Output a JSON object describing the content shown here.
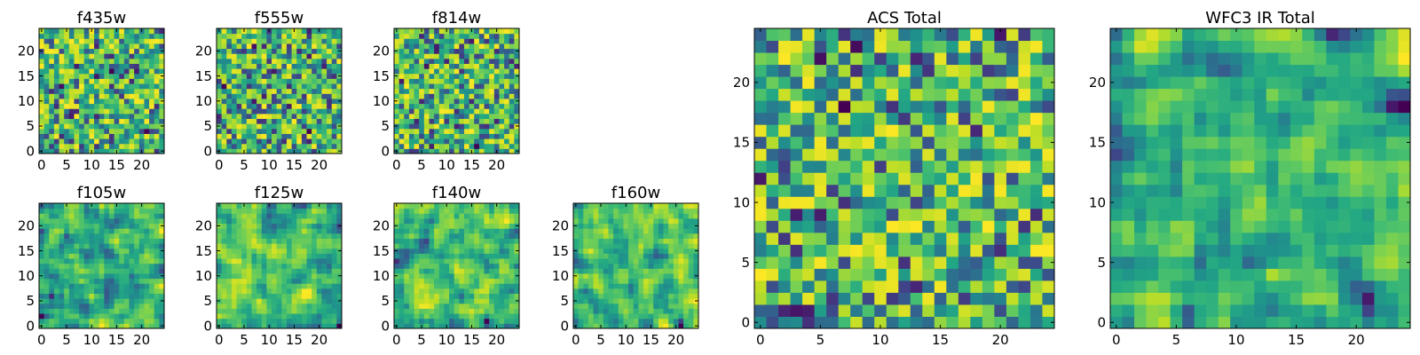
{
  "figure": {
    "colormap": "viridis"
  },
  "chart_data": [
    {
      "type": "heatmap",
      "title": "f435w",
      "seed": 11,
      "grid_size": 25,
      "extent": [
        -0.5,
        24.5
      ],
      "xticks": [
        0,
        5,
        10,
        15,
        20
      ],
      "yticks": [
        0,
        5,
        10,
        15,
        20
      ],
      "xlabel": "",
      "ylabel": "",
      "value_range": [
        0,
        1
      ],
      "texture": "noise"
    },
    {
      "type": "heatmap",
      "title": "f555w",
      "seed": 23,
      "grid_size": 25,
      "extent": [
        -0.5,
        24.5
      ],
      "xticks": [
        0,
        5,
        10,
        15,
        20
      ],
      "yticks": [
        0,
        5,
        10,
        15,
        20
      ],
      "xlabel": "",
      "ylabel": "",
      "value_range": [
        0,
        1
      ],
      "texture": "noise"
    },
    {
      "type": "heatmap",
      "title": "f814w",
      "seed": 37,
      "grid_size": 25,
      "extent": [
        -0.5,
        24.5
      ],
      "xticks": [
        0,
        5,
        10,
        15,
        20
      ],
      "yticks": [
        0,
        5,
        10,
        15,
        20
      ],
      "xlabel": "",
      "ylabel": "",
      "value_range": [
        0,
        1
      ],
      "texture": "noise"
    },
    {
      "type": "heatmap",
      "title": "f105w",
      "seed": 41,
      "grid_size": 25,
      "extent": [
        -0.5,
        24.5
      ],
      "xticks": [
        0,
        5,
        10,
        15,
        20
      ],
      "yticks": [
        0,
        5,
        10,
        15,
        20
      ],
      "xlabel": "",
      "ylabel": "",
      "value_range": [
        0,
        1
      ],
      "texture": "smooth"
    },
    {
      "type": "heatmap",
      "title": "f125w",
      "seed": 53,
      "grid_size": 25,
      "extent": [
        -0.5,
        24.5
      ],
      "xticks": [
        0,
        5,
        10,
        15,
        20
      ],
      "yticks": [
        0,
        5,
        10,
        15,
        20
      ],
      "xlabel": "",
      "ylabel": "",
      "value_range": [
        0,
        1
      ],
      "texture": "smooth"
    },
    {
      "type": "heatmap",
      "title": "f140w",
      "seed": 67,
      "grid_size": 25,
      "extent": [
        -0.5,
        24.5
      ],
      "xticks": [
        0,
        5,
        10,
        15,
        20
      ],
      "yticks": [
        0,
        5,
        10,
        15,
        20
      ],
      "xlabel": "",
      "ylabel": "",
      "value_range": [
        0,
        1
      ],
      "texture": "smooth"
    },
    {
      "type": "heatmap",
      "title": "f160w",
      "seed": 79,
      "grid_size": 25,
      "extent": [
        -0.5,
        24.5
      ],
      "xticks": [
        0,
        5,
        10,
        15,
        20
      ],
      "yticks": [
        0,
        5,
        10,
        15,
        20
      ],
      "xlabel": "",
      "ylabel": "",
      "value_range": [
        0,
        1
      ],
      "texture": "smooth"
    },
    {
      "type": "heatmap",
      "title": "ACS Total",
      "seed": 97,
      "grid_size": 25,
      "extent": [
        -0.5,
        24.5
      ],
      "xticks": [
        0,
        5,
        10,
        15,
        20
      ],
      "yticks": [
        0,
        5,
        10,
        15,
        20
      ],
      "xlabel": "",
      "ylabel": "",
      "value_range": [
        0,
        1
      ],
      "texture": "noise"
    },
    {
      "type": "heatmap",
      "title": "WFC3 IR Total",
      "seed": 113,
      "grid_size": 25,
      "extent": [
        -0.5,
        24.5
      ],
      "xticks": [
        0,
        5,
        10,
        15,
        20
      ],
      "yticks": [
        0,
        5,
        10,
        15,
        20
      ],
      "xlabel": "",
      "ylabel": "",
      "value_range": [
        0,
        1
      ],
      "texture": "smooth"
    }
  ]
}
